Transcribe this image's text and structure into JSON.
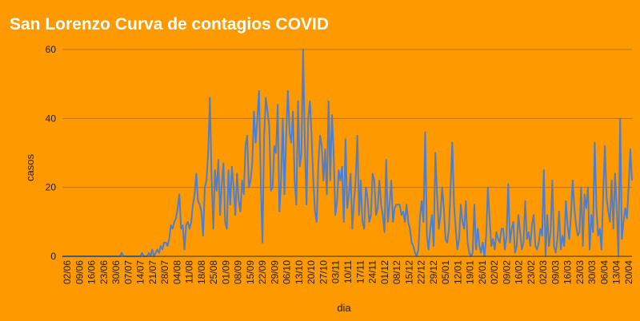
{
  "colors": {
    "background": "#ff9900",
    "series": "#4a7fd4",
    "grid": "#b8751a",
    "title": "#ffffff"
  },
  "chart_data": {
    "type": "line",
    "title": "San Lorenzo Curva de contagios COVID",
    "xlabel": "dia",
    "ylabel": "casos",
    "ylim": [
      0,
      60
    ],
    "yticks": [
      0,
      20,
      40,
      60
    ],
    "grid": true,
    "legend": "none",
    "x_tick_labels": [
      "02/06",
      "09/06",
      "16/06",
      "23/06",
      "30/06",
      "07/07",
      "14/07",
      "21/07",
      "28/07",
      "04/08",
      "11/08",
      "18/08",
      "25/08",
      "01/09",
      "08/09",
      "15/09",
      "22/09",
      "29/09",
      "06/10",
      "13/10",
      "20/10",
      "27/10",
      "03/11",
      "10/11",
      "17/11",
      "24/11",
      "01/12",
      "08/12",
      "15/12",
      "22/12",
      "29/12",
      "05/01",
      "12/01",
      "19/01",
      "26/01",
      "02/02",
      "09/02",
      "16/02",
      "23/02",
      "02/03",
      "09/03",
      "16/03",
      "23/03",
      "30/03",
      "06/04",
      "13/04",
      "20/04"
    ],
    "series": [
      {
        "values": [
          0,
          0,
          0,
          0,
          0,
          0,
          0,
          0,
          0,
          0,
          0,
          0,
          0,
          0,
          0,
          0,
          0,
          0,
          0,
          0,
          0,
          0,
          0,
          0,
          0,
          0,
          0,
          0,
          0,
          0,
          0,
          0,
          0,
          0,
          0,
          1,
          0,
          0,
          0,
          0,
          0,
          0,
          0,
          0,
          0,
          0,
          0,
          1,
          0,
          0,
          0,
          1,
          0,
          2,
          0,
          1,
          2,
          1,
          3,
          2,
          4,
          4,
          3,
          5,
          9,
          8,
          10,
          11,
          14,
          18,
          8,
          9,
          2,
          9,
          10,
          8,
          10,
          15,
          18,
          24,
          16,
          15,
          13,
          6,
          20,
          22,
          30,
          46,
          23,
          8,
          25,
          19,
          28,
          12,
          21,
          27,
          10,
          8,
          25,
          15,
          26,
          20,
          12,
          24,
          16,
          13,
          22,
          18,
          32,
          35,
          20,
          22,
          27,
          42,
          33,
          40,
          48,
          22,
          4,
          35,
          46,
          42,
          38,
          19,
          20,
          32,
          30,
          44,
          13,
          22,
          40,
          18,
          35,
          48,
          36,
          33,
          42,
          22,
          15,
          45,
          26,
          30,
          60,
          33,
          15,
          40,
          45,
          35,
          22,
          13,
          10,
          27,
          35,
          32,
          22,
          31,
          18,
          45,
          22,
          41,
          30,
          12,
          16,
          25,
          22,
          26,
          10,
          34,
          14,
          18,
          24,
          8,
          16,
          22,
          35,
          12,
          22,
          10,
          8,
          20,
          17,
          10,
          12,
          24,
          22,
          12,
          14,
          22,
          15,
          12,
          7,
          28,
          10,
          15,
          22,
          10,
          14,
          15,
          15,
          15,
          12,
          13,
          10,
          15,
          10,
          8,
          4,
          3,
          1,
          0,
          2,
          12,
          16,
          10,
          36,
          6,
          2,
          8,
          12,
          3,
          30,
          18,
          8,
          12,
          20,
          14,
          5,
          4,
          8,
          20,
          33,
          15,
          8,
          2,
          5,
          15,
          10,
          8,
          16,
          4,
          1,
          0,
          1,
          15,
          2,
          8,
          3,
          1,
          4,
          0,
          6,
          20,
          11,
          3,
          5,
          2,
          7,
          5,
          4,
          8,
          8,
          2,
          6,
          21,
          4,
          8,
          10,
          1,
          3,
          12,
          7,
          2,
          4,
          16,
          5,
          7,
          3,
          9,
          12,
          3,
          2,
          4,
          8,
          6,
          25,
          0,
          12,
          3,
          7,
          22,
          3,
          1,
          5,
          13,
          2,
          6,
          3,
          16,
          9,
          5,
          12,
          22,
          14,
          9,
          6,
          7,
          20,
          3,
          18,
          14,
          20,
          2,
          12,
          7,
          33,
          14,
          6,
          8,
          2,
          18,
          32,
          17,
          13,
          10,
          22,
          8,
          24,
          14,
          0,
          40,
          5,
          10,
          14,
          11,
          20,
          31,
          22
        ]
      }
    ]
  }
}
